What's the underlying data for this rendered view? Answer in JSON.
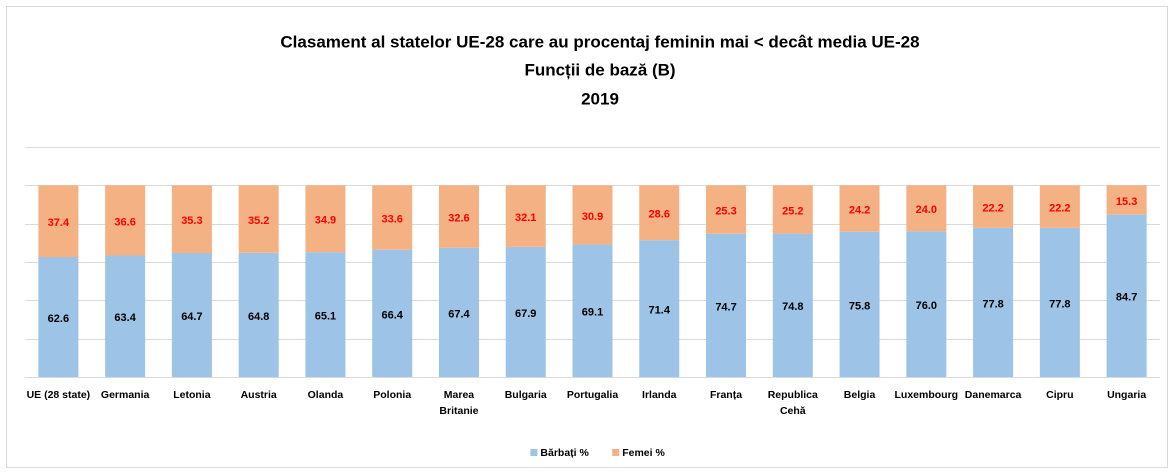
{
  "chart_data": {
    "type": "stacked_bar",
    "title_lines": [
      "Clasament al statelor UE-28 care au procentaj feminin mai < decât media UE-28",
      "Funcții de bază (B)",
      "2019"
    ],
    "categories": [
      "UE (28 state)",
      "Germania",
      "Letonia",
      "Austria",
      "Olanda",
      "Polonia",
      "Marea Britanie",
      "Bulgaria",
      "Portugalia",
      "Irlanda",
      "Franța",
      "Republica Cehă",
      "Belgia",
      "Luxembourg",
      "Danemarca",
      "Cipru",
      "Ungaria"
    ],
    "series": [
      {
        "name": "Bărbați %",
        "color": "#9dc3e6",
        "label_color": "#000000",
        "values": [
          62.6,
          63.4,
          64.7,
          64.8,
          65.1,
          66.4,
          67.4,
          67.9,
          69.1,
          71.4,
          74.7,
          74.8,
          75.8,
          76.0,
          77.8,
          77.8,
          84.7
        ],
        "value_labels": [
          "62.6",
          "63.4",
          "64.7",
          "64.8",
          "65.1",
          "66.4",
          "67.4",
          "67.9",
          "69.1",
          "71.4",
          "74.7",
          "74.8",
          "75.8",
          "76.0",
          "77.8",
          "77.8",
          "84.7"
        ]
      },
      {
        "name": "Femei %",
        "color": "#f4b183",
        "label_color": "#ff0000",
        "values": [
          37.4,
          36.6,
          35.3,
          35.2,
          34.9,
          33.6,
          32.6,
          32.1,
          30.9,
          28.6,
          25.3,
          25.2,
          24.2,
          24.0,
          22.2,
          22.2,
          15.3
        ],
        "value_labels": [
          "37.4",
          "36.6",
          "35.3",
          "35.2",
          "34.9",
          "33.6",
          "32.6",
          "32.1",
          "30.9",
          "28.6",
          "25.3",
          "25.2",
          "24.2",
          "24.0",
          "22.2",
          "22.2",
          "15.3"
        ]
      }
    ],
    "ylim": [
      0,
      120
    ],
    "yticks": [
      0,
      20,
      40,
      60,
      80,
      100,
      120
    ],
    "grid": true,
    "legend": "bottom"
  }
}
